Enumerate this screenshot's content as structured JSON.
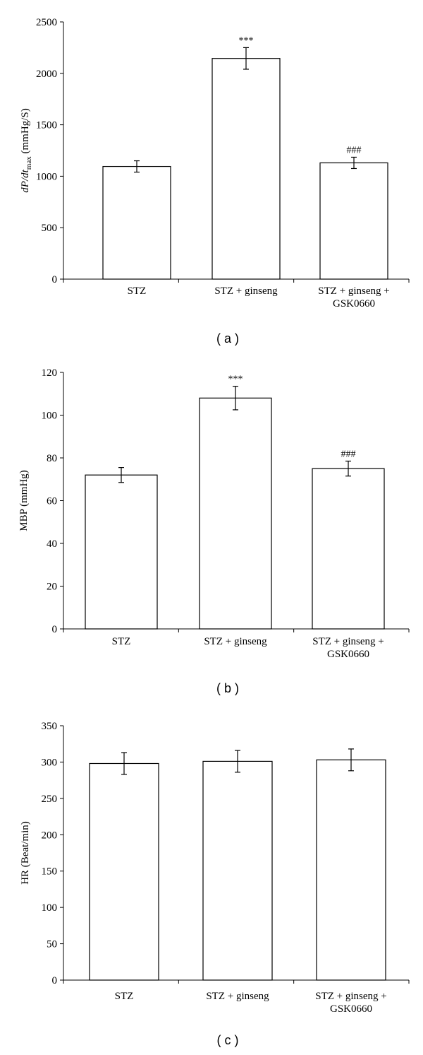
{
  "chart_data": [
    {
      "type": "bar",
      "panel_label": "( a )",
      "ylabel": "dP/dt",
      "ylabel_sub": "max",
      "ylabel_unit": " (mmHg/S)",
      "categories": [
        "STZ",
        "STZ + ginseng",
        "STZ + ginseng +|GSK0660"
      ],
      "values": [
        1095,
        2145,
        1130
      ],
      "errors": [
        55,
        105,
        55
      ],
      "annotations": [
        "",
        "***",
        "###"
      ],
      "ylim": [
        0,
        2500
      ],
      "yticks": [
        0,
        500,
        1000,
        1500,
        2000,
        2500
      ],
      "grid": false
    },
    {
      "type": "bar",
      "panel_label": "( b )",
      "ylabel": "MBP (mmHg)",
      "categories": [
        "STZ",
        "STZ + ginseng",
        "STZ + ginseng +|GSK0660"
      ],
      "values": [
        72,
        108,
        75
      ],
      "errors": [
        3.5,
        5.5,
        3.5
      ],
      "annotations": [
        "",
        "***",
        "###"
      ],
      "ylim": [
        0,
        120
      ],
      "yticks": [
        0,
        20,
        40,
        60,
        80,
        100,
        120
      ],
      "grid": false
    },
    {
      "type": "bar",
      "panel_label": "( c )",
      "ylabel": "HR (Beat/min)",
      "categories": [
        "STZ",
        "STZ + ginseng",
        "STZ + ginseng +|GSK0660"
      ],
      "values": [
        298,
        301,
        303
      ],
      "errors": [
        15,
        15,
        15
      ],
      "annotations": [
        "",
        "",
        ""
      ],
      "ylim": [
        0,
        350
      ],
      "yticks": [
        0,
        50,
        100,
        150,
        200,
        250,
        300,
        350
      ],
      "grid": false
    }
  ]
}
